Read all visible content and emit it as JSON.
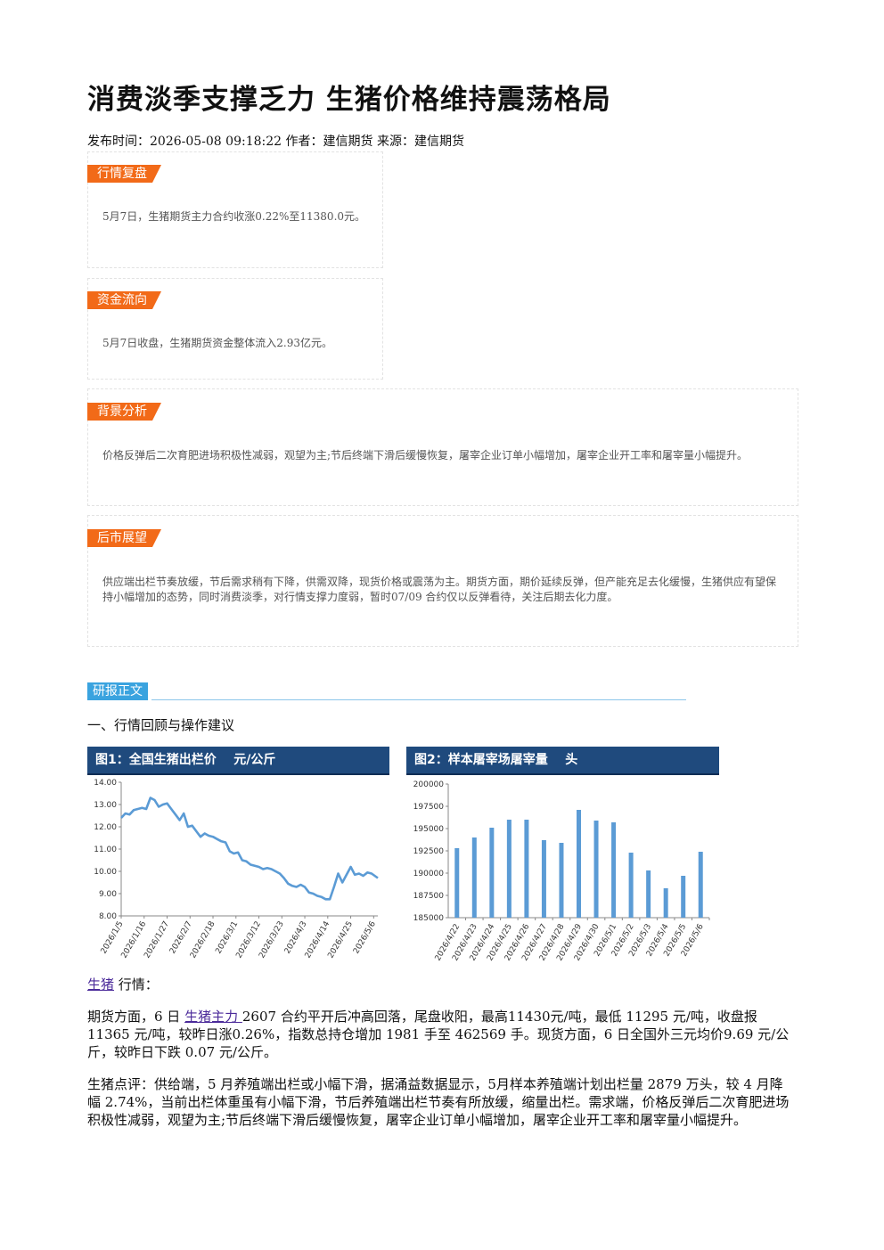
{
  "article": {
    "title": "消费淡季支撑乏力 生猪价格维持震荡格局",
    "meta": "发布时间：2026-05-08 09:18:22 作者：建信期货 来源：建信期货"
  },
  "sections": {
    "market_review": {
      "tag": "行情复盘",
      "text": "5月7日，生猪期货主力合约收涨0.22%至11380.0元。"
    },
    "fund_flow": {
      "tag": "资金流向",
      "text": "5月7日收盘，生猪期货资金整体流入2.93亿元。"
    },
    "background": {
      "tag": "背景分析",
      "text": "价格反弹后二次育肥进场积极性减弱，观望为主;节后终端下滑后缓慢恢复，屠宰企业订单小幅增加，屠宰企业开工率和屠宰量小幅提升。"
    },
    "outlook": {
      "tag": "后市展望",
      "text": "供应端出栏节奏放缓，节后需求稍有下降，供需双降，现货价格或震荡为主。期货方面，期价延续反弹，但产能充足去化缓慢，生猪供应有望保持小幅增加的态势，同时消费淡季，对行情支撑力度弱，暂时07/09 合约仅以反弹看待，关注后期去化力度。"
    }
  },
  "report": {
    "tag": "研报正文",
    "section1": "一、行情回顾与操作建议"
  },
  "charts": {
    "chart1_header": "图1：全国生猪出栏价    元/公斤",
    "chart2_header": "图2：样本屠宰场屠宰量    头"
  },
  "chart_data": [
    {
      "type": "line",
      "title": "图1：全国生猪出栏价    元/公斤",
      "ylim": [
        8.0,
        14.0
      ],
      "yticks": [
        "14.00",
        "13.00",
        "12.00",
        "11.00",
        "10.00",
        "9.00",
        "8.00"
      ],
      "xticks": [
        "2026/1/5",
        "2026/1/16",
        "2026/1/27",
        "2026/2/7",
        "2026/2/18",
        "2026/3/1",
        "2026/3/12",
        "2026/3/23",
        "2026/4/3",
        "2026/4/14",
        "2026/4/25",
        "2026/5/6"
      ],
      "x_range": [
        "2026/1/5",
        "2026/5/8"
      ],
      "color": "#5b9bd5",
      "points": [
        [
          "2026/1/5",
          12.4
        ],
        [
          "2026/1/7",
          12.6
        ],
        [
          "2026/1/9",
          12.55
        ],
        [
          "2026/1/11",
          12.75
        ],
        [
          "2026/1/13",
          12.8
        ],
        [
          "2026/1/15",
          12.85
        ],
        [
          "2026/1/17",
          12.8
        ],
        [
          "2026/1/19",
          13.3
        ],
        [
          "2026/1/21",
          13.2
        ],
        [
          "2026/1/23",
          12.9
        ],
        [
          "2026/1/25",
          13.0
        ],
        [
          "2026/1/27",
          13.05
        ],
        [
          "2026/1/29",
          12.8
        ],
        [
          "2026/1/31",
          12.55
        ],
        [
          "2026/2/2",
          12.3
        ],
        [
          "2026/2/4",
          12.6
        ],
        [
          "2026/2/6",
          12.0
        ],
        [
          "2026/2/8",
          12.05
        ],
        [
          "2026/2/10",
          11.8
        ],
        [
          "2026/2/12",
          11.55
        ],
        [
          "2026/2/14",
          11.7
        ],
        [
          "2026/2/16",
          11.6
        ],
        [
          "2026/2/18",
          11.55
        ],
        [
          "2026/2/20",
          11.45
        ],
        [
          "2026/2/22",
          11.35
        ],
        [
          "2026/2/24",
          11.3
        ],
        [
          "2026/2/26",
          10.9
        ],
        [
          "2026/2/28",
          10.8
        ],
        [
          "2026/3/2",
          10.85
        ],
        [
          "2026/3/4",
          10.5
        ],
        [
          "2026/3/6",
          10.45
        ],
        [
          "2026/3/8",
          10.3
        ],
        [
          "2026/3/10",
          10.25
        ],
        [
          "2026/3/12",
          10.2
        ],
        [
          "2026/3/14",
          10.1
        ],
        [
          "2026/3/16",
          10.15
        ],
        [
          "2026/3/18",
          10.1
        ],
        [
          "2026/3/20",
          10.0
        ],
        [
          "2026/3/22",
          9.9
        ],
        [
          "2026/3/24",
          9.7
        ],
        [
          "2026/3/26",
          9.45
        ],
        [
          "2026/3/28",
          9.35
        ],
        [
          "2026/3/30",
          9.3
        ],
        [
          "2026/4/1",
          9.4
        ],
        [
          "2026/4/3",
          9.3
        ],
        [
          "2026/4/5",
          9.05
        ],
        [
          "2026/4/7",
          9.0
        ],
        [
          "2026/4/9",
          8.9
        ],
        [
          "2026/4/11",
          8.85
        ],
        [
          "2026/4/13",
          8.75
        ],
        [
          "2026/4/15",
          8.75
        ],
        [
          "2026/4/17",
          9.3
        ],
        [
          "2026/4/19",
          9.9
        ],
        [
          "2026/4/21",
          9.5
        ],
        [
          "2026/4/23",
          9.85
        ],
        [
          "2026/4/25",
          10.2
        ],
        [
          "2026/4/27",
          9.85
        ],
        [
          "2026/4/29",
          9.9
        ],
        [
          "2026/5/1",
          9.8
        ],
        [
          "2026/5/3",
          9.95
        ],
        [
          "2026/5/5",
          9.9
        ],
        [
          "2026/5/8",
          9.7
        ]
      ]
    },
    {
      "type": "bar",
      "title": "图2：样本屠宰场屠宰量    头",
      "ylim": [
        185000,
        200000
      ],
      "yticks": [
        "200000",
        "197500",
        "195000",
        "192500",
        "190000",
        "187500",
        "185000"
      ],
      "categories": [
        "2026/4/22",
        "2026/4/23",
        "2026/4/24",
        "2026/4/25",
        "2026/4/26",
        "2026/4/27",
        "2026/4/28",
        "2026/4/29",
        "2026/4/30",
        "2026/5/1",
        "2026/5/2",
        "2026/5/3",
        "2026/5/4",
        "2026/5/5",
        "2026/5/6"
      ],
      "values": [
        192800,
        194000,
        195100,
        196000,
        196000,
        193700,
        193400,
        197100,
        195900,
        195700,
        192300,
        190300,
        188300,
        189700,
        192400
      ],
      "color": "#5b9bd5"
    }
  ],
  "paragraphs": {
    "pig_label_link": "生猪",
    "pig_label_rest": " 行情：",
    "futures_pre": "期货方面，6 日 ",
    "futures_link": "生猪主力 ",
    "futures_post": "2607 合约平开后冲高回落，尾盘收阳，最高11430元/吨，最低 11295 元/吨，收盘报 11365 元/吨，较昨日涨0.26%，指数总持仓增加 1981 手至 462569 手。现货方面，6 日全国外三元均价9.69 元/公斤，较昨日下跌 0.07 元/公斤。",
    "comment": "生猪点评：供给端，5 月养殖端出栏或小幅下滑，据涌益数据显示，5月样本养殖端计划出栏量 2879 万头，较 4 月降幅 2.74%，当前出栏体重虽有小幅下滑，节后养殖端出栏节奏有所放缓，缩量出栏。需求端，价格反弹后二次育肥进场积极性减弱，观望为主;节后终端下滑后缓慢恢复，屠宰企业订单小幅增加，屠宰企业开工率和屠宰量小幅提升。"
  }
}
